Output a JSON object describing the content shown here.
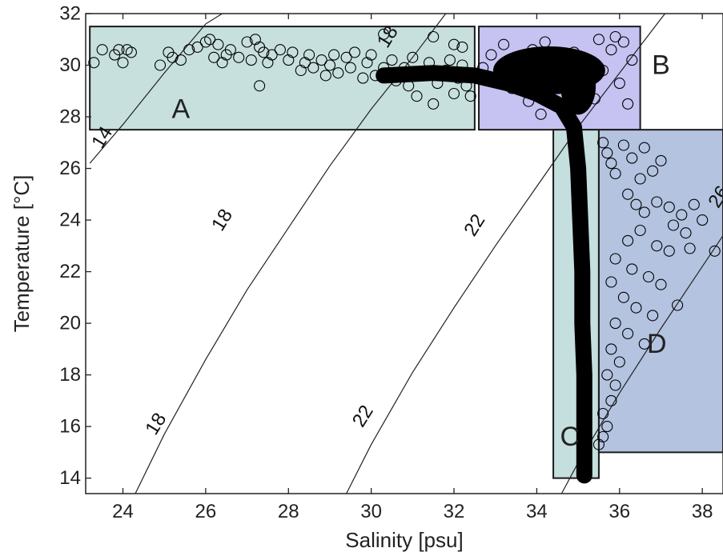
{
  "chart_data": {
    "type": "scatter",
    "title": "",
    "xlabel": "Salinity [psu]",
    "ylabel": "Temperature [°C]",
    "xlim": [
      23.1,
      38.5
    ],
    "ylim": [
      13.4,
      32
    ],
    "x_ticks": [
      "24",
      "26",
      "28",
      "30",
      "32",
      "34",
      "36",
      "38"
    ],
    "y_ticks": [
      "14",
      "16",
      "18",
      "20",
      "22",
      "24",
      "26",
      "28",
      "30",
      "32"
    ],
    "grid": false,
    "colors": {
      "A": "#c7e0de",
      "B": "#c6c2f2",
      "C": "#c5dede",
      "D": "#b3c3e0",
      "marker": "#000000"
    },
    "regions": [
      {
        "label": "A",
        "x": [
          23.2,
          32.5
        ],
        "y": [
          27.5,
          31.5
        ]
      },
      {
        "label": "B",
        "x": [
          32.6,
          36.5
        ],
        "y": [
          27.5,
          31.5
        ]
      },
      {
        "label": "C",
        "x": [
          34.4,
          35.5
        ],
        "y": [
          14.0,
          27.5
        ]
      },
      {
        "label": "D",
        "x": [
          35.5,
          38.5
        ],
        "y": [
          15.0,
          27.5
        ]
      }
    ],
    "density_contours": [
      {
        "label": "14",
        "points": [
          [
            23.2,
            26.2
          ],
          [
            24.0,
            27.7
          ],
          [
            25.0,
            29.7
          ],
          [
            26.0,
            31.6
          ],
          [
            26.4,
            32.0
          ]
        ]
      },
      {
        "label": "18",
        "points": [
          [
            24.3,
            13.4
          ],
          [
            25.0,
            15.7
          ],
          [
            26.0,
            18.6
          ],
          [
            27.0,
            21.3
          ],
          [
            28.0,
            23.7
          ],
          [
            29.0,
            26.1
          ],
          [
            30.0,
            28.3
          ],
          [
            31.0,
            30.3
          ],
          [
            31.8,
            32.0
          ]
        ]
      },
      {
        "label": "22",
        "points": [
          [
            29.4,
            13.4
          ],
          [
            30.0,
            15.3
          ],
          [
            31.0,
            18.1
          ],
          [
            32.0,
            20.6
          ],
          [
            33.0,
            23.0
          ],
          [
            34.0,
            25.3
          ],
          [
            35.0,
            27.6
          ],
          [
            36.0,
            29.7
          ],
          [
            37.0,
            31.8
          ],
          [
            37.1,
            32.0
          ]
        ]
      },
      {
        "label": "26",
        "points": [
          [
            34.6,
            13.4
          ],
          [
            35.0,
            14.6
          ],
          [
            36.0,
            17.3
          ],
          [
            37.0,
            19.8
          ],
          [
            38.0,
            22.2
          ],
          [
            38.5,
            23.4
          ]
        ]
      }
    ],
    "contour_labels": [
      {
        "text": "14",
        "x": 23.5,
        "y": 27.2
      },
      {
        "text": "18",
        "x": 30.4,
        "y": 31.1
      },
      {
        "text": "18",
        "x": 26.4,
        "y": 24.0
      },
      {
        "text": "18",
        "x": 24.8,
        "y": 16.1
      },
      {
        "text": "22",
        "x": 32.5,
        "y": 23.8
      },
      {
        "text": "22",
        "x": 29.8,
        "y": 16.4
      },
      {
        "text": "26",
        "x": 38.4,
        "y": 24.9
      }
    ],
    "series": [
      {
        "points": [
          [
            23.3,
            30.1
          ],
          [
            23.5,
            30.6
          ],
          [
            23.8,
            30.4
          ],
          [
            23.9,
            30.6
          ],
          [
            24.0,
            30.1
          ],
          [
            24.1,
            30.6
          ],
          [
            24.2,
            30.5
          ],
          [
            24.9,
            30.0
          ],
          [
            25.1,
            30.5
          ],
          [
            25.2,
            30.3
          ],
          [
            25.4,
            30.2
          ],
          [
            25.6,
            30.6
          ],
          [
            25.8,
            30.7
          ],
          [
            26.0,
            30.9
          ],
          [
            26.1,
            31.0
          ],
          [
            26.2,
            30.3
          ],
          [
            26.3,
            30.8
          ],
          [
            26.4,
            30.1
          ],
          [
            26.5,
            30.4
          ],
          [
            26.6,
            30.6
          ],
          [
            26.8,
            30.3
          ],
          [
            27.0,
            30.9
          ],
          [
            27.1,
            30.2
          ],
          [
            27.2,
            31.0
          ],
          [
            27.3,
            30.7
          ],
          [
            27.4,
            30.5
          ],
          [
            27.5,
            30.1
          ],
          [
            27.6,
            30.4
          ],
          [
            27.3,
            29.2
          ],
          [
            27.8,
            30.6
          ],
          [
            28.0,
            30.2
          ],
          [
            28.1,
            30.5
          ],
          [
            28.3,
            29.8
          ],
          [
            28.4,
            30.1
          ],
          [
            28.5,
            30.4
          ],
          [
            28.6,
            29.9
          ],
          [
            28.8,
            30.2
          ],
          [
            28.9,
            29.6
          ],
          [
            29.0,
            30.0
          ],
          [
            29.1,
            30.4
          ],
          [
            29.2,
            29.7
          ],
          [
            29.4,
            30.3
          ],
          [
            29.5,
            29.9
          ],
          [
            29.6,
            30.5
          ],
          [
            29.8,
            29.5
          ],
          [
            29.9,
            30.1
          ],
          [
            30.0,
            30.4
          ],
          [
            30.1,
            29.6
          ],
          [
            30.3,
            29.9
          ],
          [
            30.5,
            30.2
          ],
          [
            30.6,
            29.4
          ],
          [
            30.8,
            29.9
          ],
          [
            30.9,
            29.2
          ],
          [
            31.0,
            30.3
          ],
          [
            31.1,
            28.8
          ],
          [
            31.3,
            29.6
          ],
          [
            31.4,
            30.1
          ],
          [
            31.5,
            28.5
          ],
          [
            31.6,
            29.3
          ],
          [
            31.8,
            29.8
          ],
          [
            31.9,
            30.2
          ],
          [
            32.0,
            28.9
          ],
          [
            32.1,
            29.5
          ],
          [
            32.2,
            30.0
          ],
          [
            32.3,
            29.2
          ],
          [
            32.4,
            28.8
          ],
          [
            31.5,
            31.1
          ],
          [
            32.0,
            30.8
          ],
          [
            32.2,
            30.7
          ],
          [
            30.3,
            31.2
          ],
          [
            32.7,
            29.9
          ],
          [
            32.9,
            30.4
          ],
          [
            33.0,
            29.5
          ],
          [
            33.2,
            30.8
          ],
          [
            33.4,
            29.1
          ],
          [
            33.6,
            30.1
          ],
          [
            33.8,
            28.6
          ],
          [
            33.9,
            30.6
          ],
          [
            34.0,
            29.4
          ],
          [
            34.1,
            28.1
          ],
          [
            34.2,
            30.9
          ],
          [
            34.3,
            29.7
          ],
          [
            34.5,
            28.4
          ],
          [
            34.6,
            30.3
          ],
          [
            34.7,
            29.2
          ],
          [
            34.8,
            28.0
          ],
          [
            34.9,
            30.5
          ],
          [
            35.0,
            29.0
          ],
          [
            35.2,
            30.1
          ],
          [
            35.4,
            28.7
          ],
          [
            35.6,
            29.8
          ],
          [
            35.8,
            30.6
          ],
          [
            36.0,
            29.3
          ],
          [
            36.2,
            28.5
          ],
          [
            36.3,
            30.2
          ],
          [
            35.9,
            31.1
          ],
          [
            35.5,
            31.0
          ],
          [
            36.1,
            30.9
          ],
          [
            35.6,
            27.0
          ],
          [
            35.7,
            26.6
          ],
          [
            35.8,
            26.2
          ],
          [
            35.9,
            25.8
          ],
          [
            36.1,
            26.9
          ],
          [
            36.3,
            26.4
          ],
          [
            36.5,
            25.6
          ],
          [
            36.6,
            26.8
          ],
          [
            36.8,
            25.9
          ],
          [
            37.0,
            26.3
          ],
          [
            36.2,
            25.0
          ],
          [
            36.4,
            24.6
          ],
          [
            36.6,
            24.3
          ],
          [
            36.9,
            24.7
          ],
          [
            37.2,
            24.5
          ],
          [
            37.5,
            24.2
          ],
          [
            37.8,
            24.6
          ],
          [
            38.0,
            24.0
          ],
          [
            37.3,
            23.8
          ],
          [
            37.6,
            23.5
          ],
          [
            36.5,
            23.6
          ],
          [
            36.2,
            23.2
          ],
          [
            36.9,
            23.0
          ],
          [
            37.2,
            22.8
          ],
          [
            37.7,
            22.9
          ],
          [
            35.9,
            22.5
          ],
          [
            36.3,
            22.1
          ],
          [
            36.7,
            21.8
          ],
          [
            37.0,
            21.5
          ],
          [
            35.8,
            21.6
          ],
          [
            36.1,
            21.0
          ],
          [
            36.4,
            20.6
          ],
          [
            36.8,
            20.3
          ],
          [
            35.9,
            20.0
          ],
          [
            36.2,
            19.6
          ],
          [
            35.8,
            19.0
          ],
          [
            36.0,
            18.5
          ],
          [
            35.7,
            18.0
          ],
          [
            35.9,
            17.6
          ],
          [
            35.8,
            17.0
          ],
          [
            35.6,
            16.5
          ],
          [
            35.7,
            16.0
          ],
          [
            35.6,
            15.6
          ],
          [
            35.5,
            15.3
          ],
          [
            38.3,
            22.8
          ],
          [
            37.4,
            20.7
          ],
          [
            36.6,
            19.2
          ]
        ]
      }
    ]
  }
}
